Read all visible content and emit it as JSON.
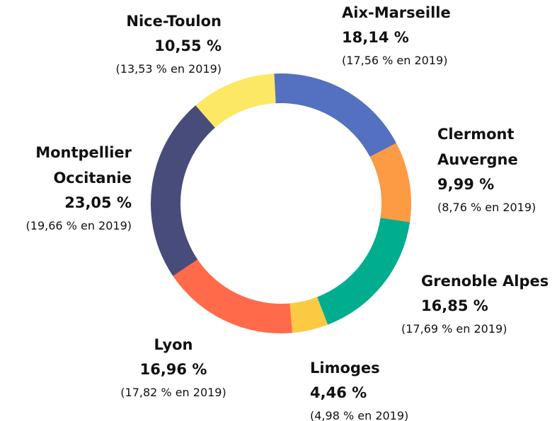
{
  "chart_data": {
    "type": "donut",
    "categories": [
      "Aix-Marseille",
      "Clermont Auvergne",
      "Grenoble Alpes",
      "Limoges",
      "Lyon",
      "Montpellier Occitanie",
      "Nice-Toulon"
    ],
    "values": [
      18.14,
      9.99,
      16.85,
      4.46,
      16.96,
      23.05,
      10.55
    ],
    "value_labels": [
      "18,14 %",
      "9,99 %",
      "16,85 %",
      "4,46 %",
      "16,96 %",
      "23,05 %",
      "10,55 %"
    ],
    "notes": [
      "(17,56 % en 2019)",
      "(8,76 % en 2019)",
      "(17,69 % en 2019)",
      "(4,98 % en 2019)",
      "(17,82 % en 2019)",
      "(19,66 % en 2019)",
      "(13,53 % en 2019)"
    ],
    "colors": [
      "#5470c0",
      "#fd9a44",
      "#00ad8e",
      "#fcc943",
      "#ff6b4a",
      "#484c7a",
      "#fde866"
    ]
  }
}
